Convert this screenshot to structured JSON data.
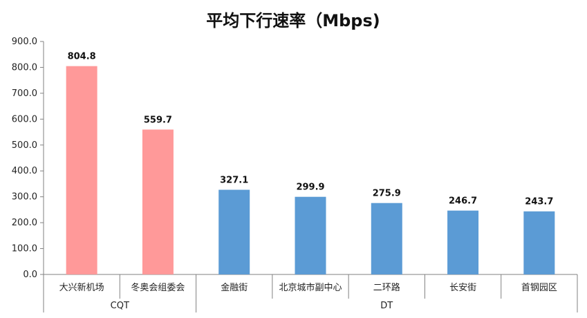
{
  "chart_data": {
    "type": "bar",
    "title": "平均下行速率（Mbps)",
    "xlabel": "",
    "ylabel": "",
    "ylim": [
      0,
      900
    ],
    "yticks": [
      "0.0",
      "100.0",
      "200.0",
      "300.0",
      "400.0",
      "500.0",
      "600.0",
      "700.0",
      "800.0",
      "900.0"
    ],
    "categories": [
      "大兴新机场",
      "冬奥会组委会",
      "金融街",
      "北京城市副中心",
      "二环路",
      "长安街",
      "首钢园区"
    ],
    "values": [
      804.8,
      559.7,
      327.1,
      299.9,
      275.9,
      246.7,
      243.7
    ],
    "value_labels": [
      "804.8",
      "559.7",
      "327.1",
      "299.9",
      "275.9",
      "246.7",
      "243.7"
    ],
    "groups": [
      {
        "label": "CQT",
        "count": 2,
        "color": "#FF9999"
      },
      {
        "label": "DT",
        "count": 5,
        "color": "#5B9BD5"
      }
    ],
    "grid": false,
    "legend": "none"
  }
}
